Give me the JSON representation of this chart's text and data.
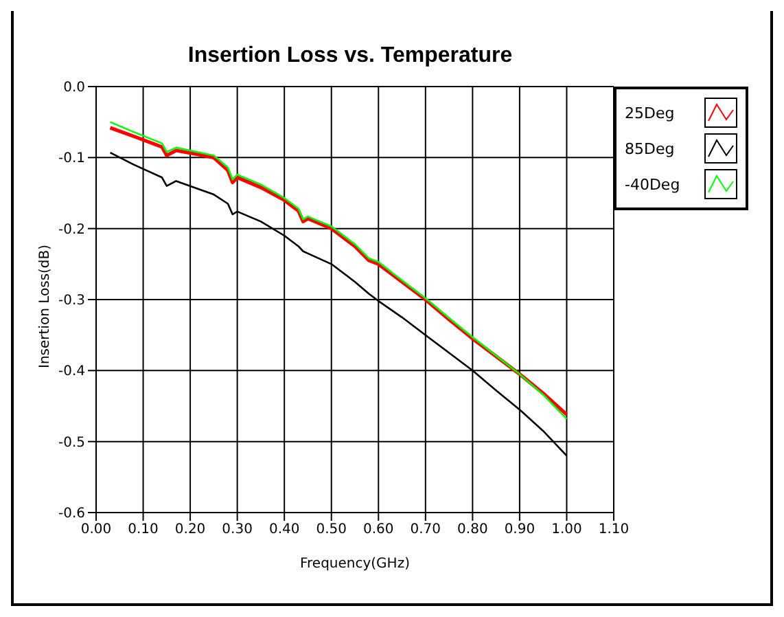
{
  "chart_data": {
    "type": "line",
    "title": "Insertion Loss vs. Temperature",
    "xlabel": "Frequency(GHz)",
    "ylabel": "Insertion Loss(dB)",
    "x": [
      0.03,
      0.08,
      0.14,
      0.15,
      0.17,
      0.22,
      0.25,
      0.28,
      0.29,
      0.3,
      0.35,
      0.4,
      0.43,
      0.44,
      0.45,
      0.5,
      0.55,
      0.58,
      0.6,
      0.65,
      0.7,
      0.75,
      0.8,
      0.85,
      0.9,
      0.95,
      1.0
    ],
    "series": [
      {
        "name": "25Deg",
        "color": "#ff0000",
        "values": [
          -0.058,
          -0.07,
          -0.085,
          -0.097,
          -0.09,
          -0.096,
          -0.1,
          -0.118,
          -0.135,
          -0.128,
          -0.142,
          -0.16,
          -0.175,
          -0.19,
          -0.186,
          -0.2,
          -0.225,
          -0.245,
          -0.25,
          -0.275,
          -0.3,
          -0.328,
          -0.355,
          -0.38,
          -0.405,
          -0.432,
          -0.462
        ]
      },
      {
        "name": "85Deg",
        "color": "#000000",
        "values": [
          -0.093,
          -0.11,
          -0.128,
          -0.14,
          -0.133,
          -0.145,
          -0.152,
          -0.165,
          -0.18,
          -0.176,
          -0.19,
          -0.21,
          -0.225,
          -0.232,
          -0.235,
          -0.25,
          -0.275,
          -0.292,
          -0.302,
          -0.325,
          -0.35,
          -0.375,
          -0.4,
          -0.428,
          -0.455,
          -0.485,
          -0.52
        ]
      },
      {
        "name": "-40Deg",
        "color": "#00ff00",
        "values": [
          -0.05,
          -0.064,
          -0.08,
          -0.092,
          -0.086,
          -0.093,
          -0.097,
          -0.114,
          -0.131,
          -0.124,
          -0.138,
          -0.157,
          -0.172,
          -0.187,
          -0.183,
          -0.197,
          -0.222,
          -0.242,
          -0.247,
          -0.273,
          -0.298,
          -0.326,
          -0.353,
          -0.379,
          -0.405,
          -0.434,
          -0.468
        ]
      }
    ],
    "xlim": [
      0,
      1.1
    ],
    "xticks": [
      {
        "value": 0,
        "label": "0.00"
      },
      {
        "value": 0.1,
        "label": "0.10"
      },
      {
        "value": 0.2,
        "label": "0.20"
      },
      {
        "value": 0.3,
        "label": "0.30"
      },
      {
        "value": 0.4,
        "label": "0.40"
      },
      {
        "value": 0.5,
        "label": "0.50"
      },
      {
        "value": 0.6,
        "label": "0.60"
      },
      {
        "value": 0.7,
        "label": "0.70"
      },
      {
        "value": 0.8,
        "label": "0.80"
      },
      {
        "value": 0.9,
        "label": "0.90"
      },
      {
        "value": 1.0,
        "label": "1.00"
      },
      {
        "value": 1.1,
        "label": "1.10"
      }
    ],
    "ylim": [
      -0.6,
      0
    ],
    "yticks": [
      {
        "value": 0,
        "label": "0.0"
      },
      -0.1,
      -0.2,
      -0.3,
      -0.4,
      -0.5,
      -0.6
    ],
    "grid": true,
    "legend": "top right",
    "marker": "none",
    "line_style": "solid"
  }
}
